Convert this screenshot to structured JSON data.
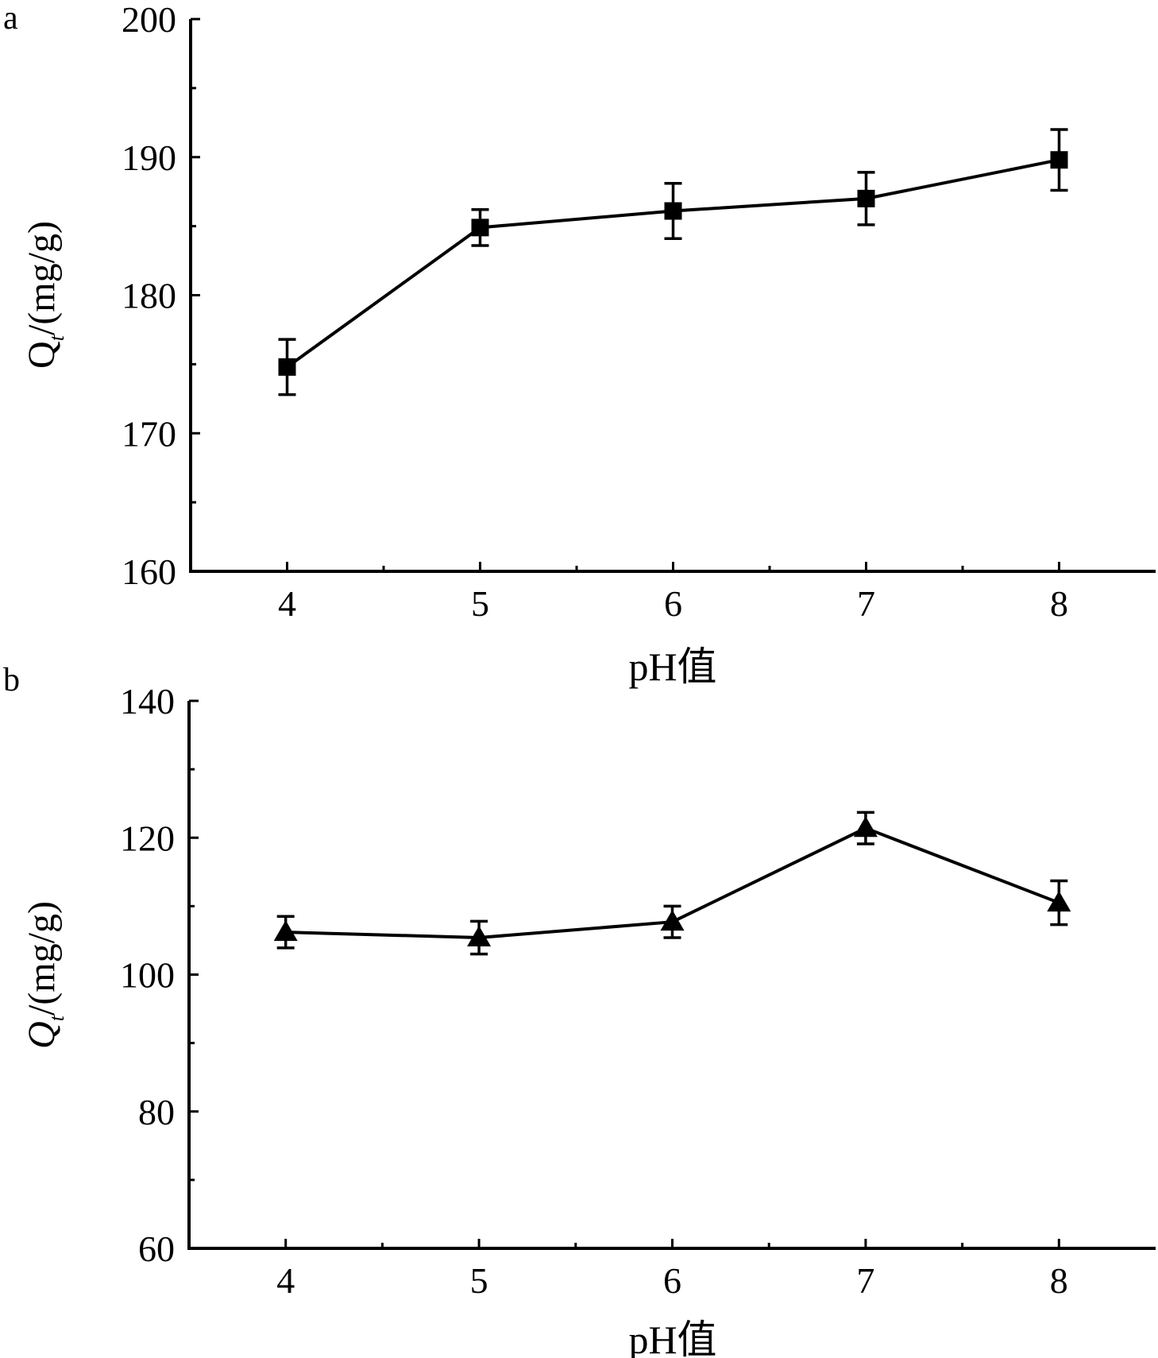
{
  "chart_data": [
    {
      "type": "line",
      "panel_label": "a",
      "xlabel": "pH值",
      "ylabel_main": "Q",
      "ylabel_sub": "t",
      "ylabel_unit": "/(mg/g)",
      "x": [
        4,
        5,
        6,
        7,
        8
      ],
      "xlim": [
        3.5,
        8.5
      ],
      "xticks": [
        4,
        5,
        6,
        7,
        8
      ],
      "ylim": [
        160,
        200
      ],
      "yticks": [
        160,
        170,
        180,
        190,
        200
      ],
      "series": [
        {
          "marker": "square",
          "color": "#000000",
          "values": [
            174.8,
            184.9,
            186.1,
            187.0,
            189.8
          ],
          "errors": [
            2.0,
            1.3,
            2.0,
            1.9,
            2.2
          ]
        }
      ],
      "grid": false,
      "legend": "none"
    },
    {
      "type": "line",
      "panel_label": "b",
      "xlabel": "pH值",
      "ylabel_main": "Q",
      "ylabel_sub": "t",
      "ylabel_unit": "/(mg/g)",
      "x": [
        4,
        5,
        6,
        7,
        8
      ],
      "xlim": [
        3.5,
        8.5
      ],
      "xticks": [
        4,
        5,
        6,
        7,
        8
      ],
      "ylim": [
        60,
        140
      ],
      "yticks": [
        60,
        80,
        100,
        120,
        140
      ],
      "series": [
        {
          "marker": "triangle",
          "color": "#000000",
          "values": [
            106.2,
            105.4,
            107.7,
            121.4,
            110.5
          ],
          "errors": [
            2.3,
            2.4,
            2.3,
            2.3,
            3.2
          ]
        }
      ],
      "grid": false,
      "legend": "none"
    }
  ]
}
